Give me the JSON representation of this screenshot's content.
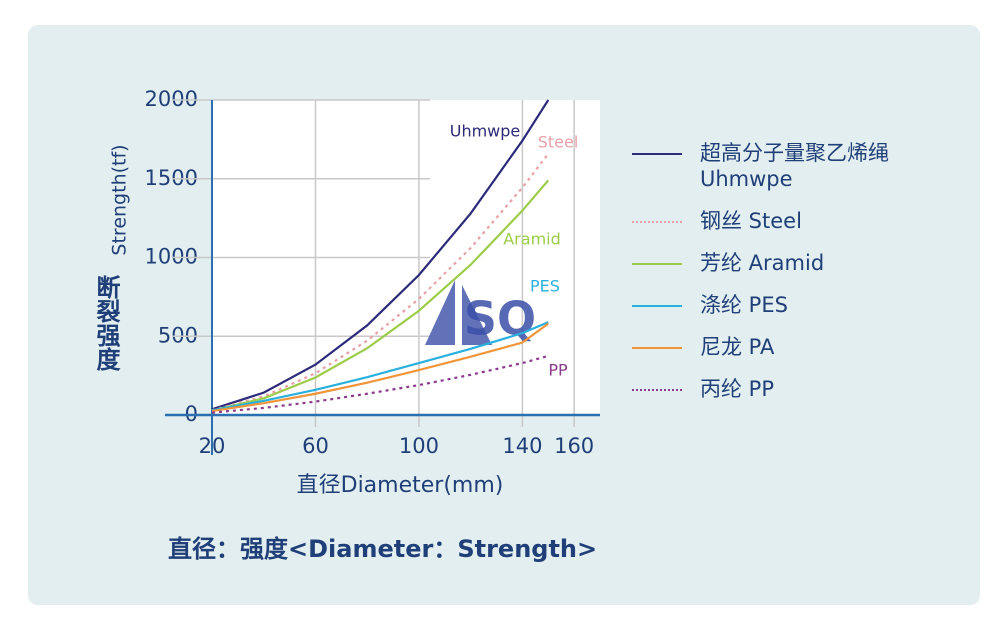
{
  "chart_data": {
    "type": "line",
    "x_label": "直径Diameter(mm)",
    "y_label_cn": "断裂强度",
    "y_label": "Strength(tf)",
    "caption": "直径：强度<Diameter：Strength>",
    "logo_text": "SQ",
    "x": [
      20,
      40,
      60,
      80,
      100,
      120,
      140,
      150
    ],
    "xlim": [
      20,
      170
    ],
    "xticks": [
      20,
      60,
      100,
      140,
      160
    ],
    "ylim": [
      0,
      2000
    ],
    "yticks": [
      0,
      500,
      1000,
      1500,
      2000
    ],
    "grid": true,
    "series": [
      {
        "name": "超高分子量聚乙烯绳 Uhmwpe",
        "label": "Uhmwpe",
        "color": "#2d2a7a",
        "dashed": false,
        "values": [
          36,
          142,
          320,
          569,
          889,
          1280,
          1742,
          2000
        ]
      },
      {
        "name": "钢丝 Steel",
        "label": "Steel",
        "color": "#e8a0a8",
        "dashed": true,
        "values": [
          30,
          118,
          265,
          472,
          737,
          1061,
          1444,
          1658
        ]
      },
      {
        "name": "芳纶 Aramid",
        "label": "Aramid",
        "color": "#9ccc4a",
        "dashed": false,
        "values": [
          27,
          106,
          238,
          424,
          662,
          954,
          1298,
          1490
        ]
      },
      {
        "name": "涤纶 PES",
        "label": "PES",
        "color": "#2ab0dd",
        "dashed": false,
        "values": [
          30,
          90,
          160,
          240,
          330,
          420,
          520,
          590
        ]
      },
      {
        "name": "尼龙 PA",
        "color": "#f0953a",
        "dashed": false,
        "values": [
          25,
          75,
          135,
          205,
          285,
          370,
          460,
          580
        ]
      },
      {
        "name": "丙纶 PP",
        "label": "PP",
        "color": "#8a3a8a",
        "dashed": true,
        "values": [
          15,
          45,
          85,
          135,
          190,
          255,
          330,
          375
        ]
      }
    ]
  }
}
